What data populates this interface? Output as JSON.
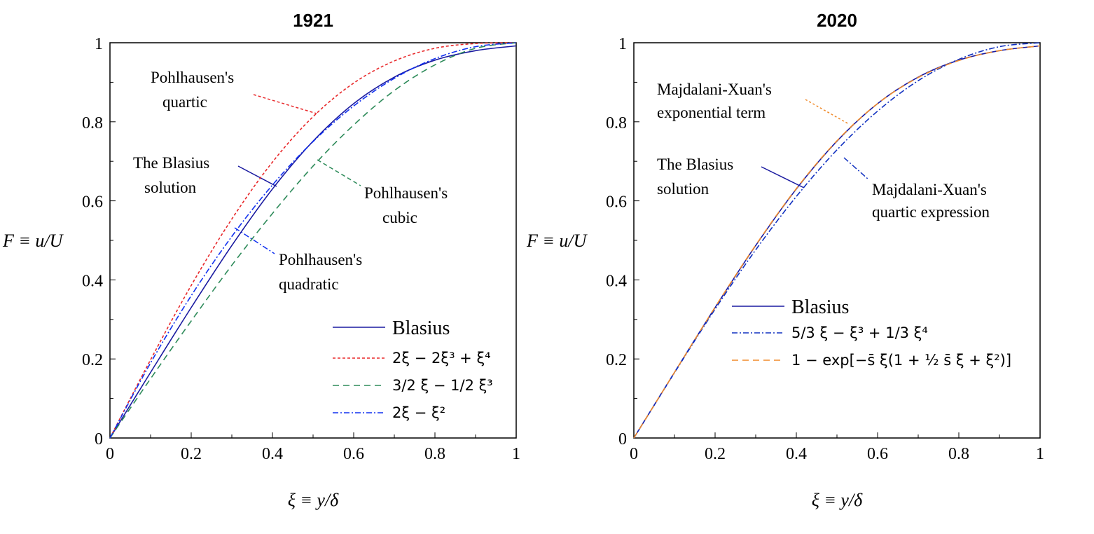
{
  "chart_data": [
    {
      "type": "line",
      "title": "1921",
      "xlabel": "ξ ≡ y/δ",
      "ylabel": "F ≡ u/U",
      "xlim": [
        0,
        1
      ],
      "ylim": [
        0,
        1
      ],
      "x": [
        0,
        0.1,
        0.2,
        0.3,
        0.4,
        0.5,
        0.6,
        0.7,
        0.8,
        0.9,
        1
      ],
      "xticks": [
        "0",
        "0.2",
        "0.4",
        "0.6",
        "0.8",
        "1"
      ],
      "yticks": [
        "0",
        "0.2",
        "0.4",
        "0.6",
        "0.8",
        "1"
      ],
      "legend_position": "bottom-right",
      "series": [
        {
          "name": "Blasius",
          "color": "#1a1aa0",
          "dash": "",
          "values": [
            0,
            0.166,
            0.33,
            0.487,
            0.63,
            0.751,
            0.846,
            0.913,
            0.956,
            0.98,
            0.992
          ]
        },
        {
          "name": "2ξ − 2ξ³ + ξ⁴",
          "color": "#e8282a",
          "dash": "4,3",
          "values": [
            0,
            0.198,
            0.386,
            0.554,
            0.698,
            0.813,
            0.898,
            0.954,
            0.986,
            0.998,
            1
          ]
        },
        {
          "name": "3/2 ξ − 1/2 ξ³",
          "color": "#2e8b5a",
          "dash": "9,6",
          "values": [
            0,
            0.15,
            0.296,
            0.437,
            0.568,
            0.688,
            0.792,
            0.879,
            0.944,
            0.986,
            1
          ]
        },
        {
          "name": "2ξ − ξ²",
          "color": "#1030f0",
          "dash": "8,3,2,3",
          "values": [
            0,
            0.19,
            0.36,
            0.51,
            0.64,
            0.75,
            0.84,
            0.91,
            0.96,
            0.99,
            1
          ]
        }
      ],
      "annotations": [
        "Pohlhausen's",
        "quartic",
        "The Blasius",
        "solution",
        "Pohlhausen's",
        "cubic",
        "Pohlhausen's",
        "quadratic"
      ]
    },
    {
      "type": "line",
      "title": "2020",
      "xlabel": "ξ ≡ y/δ",
      "ylabel": "F ≡ u/U",
      "xlim": [
        0,
        1
      ],
      "ylim": [
        0,
        1
      ],
      "x": [
        0,
        0.1,
        0.2,
        0.3,
        0.4,
        0.5,
        0.6,
        0.7,
        0.8,
        0.9,
        1
      ],
      "xticks": [
        "0",
        "0.2",
        "0.4",
        "0.6",
        "0.8",
        "1"
      ],
      "yticks": [
        "0",
        "0.2",
        "0.4",
        "0.6",
        "0.8",
        "1"
      ],
      "legend_position": "center-right",
      "series": [
        {
          "name": "Blasius",
          "color": "#1a1aa0",
          "dash": "",
          "values": [
            0,
            0.166,
            0.33,
            0.487,
            0.63,
            0.751,
            0.846,
            0.913,
            0.956,
            0.98,
            0.992
          ]
        },
        {
          "name": "5/3 ξ − ξ³ + 1/3 ξ⁴",
          "color": "#1030c0",
          "dash": "8,3,2,3",
          "values": [
            0,
            0.165,
            0.326,
            0.476,
            0.611,
            0.729,
            0.827,
            0.904,
            0.958,
            0.99,
            1
          ]
        },
        {
          "name": "1 − exp[−s̄ ξ(1 + ½ s̄ ξ + ξ²)]",
          "color": "#f08a2a",
          "dash": "9,6",
          "values": [
            0,
            0.166,
            0.331,
            0.488,
            0.631,
            0.752,
            0.846,
            0.912,
            0.955,
            0.98,
            0.992
          ]
        }
      ],
      "annotations": [
        "Majdalani-Xuan's",
        "exponential term",
        "The Blasius",
        "solution",
        "Majdalani-Xuan's",
        "quartic expression"
      ]
    }
  ]
}
